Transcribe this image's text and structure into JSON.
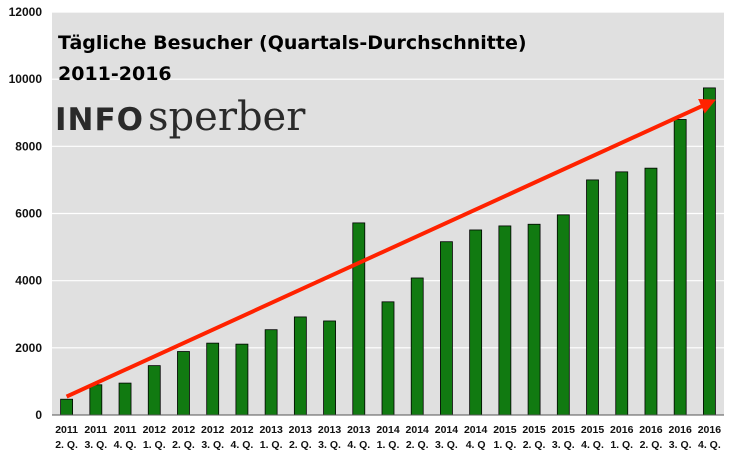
{
  "chart_data": {
    "type": "bar",
    "title": "Tägliche Besucher (Quartals-Durchschnitte)",
    "subtitle": "2011-2016",
    "logo": {
      "part1": "INFO",
      "part2": "sperber"
    },
    "categories": [
      [
        "2011",
        "2. Q."
      ],
      [
        "2011",
        "3. Q."
      ],
      [
        "2011",
        "4. Q."
      ],
      [
        "2012",
        "1. Q."
      ],
      [
        "2012",
        "2. Q."
      ],
      [
        "2012",
        "3. Q."
      ],
      [
        "2012",
        "4. Q."
      ],
      [
        "2013",
        "1. Q."
      ],
      [
        "2013",
        "2. Q."
      ],
      [
        "2013",
        "3. Q."
      ],
      [
        "2013",
        "4. Q."
      ],
      [
        "2014",
        "1. Q."
      ],
      [
        "2014",
        "2. Q."
      ],
      [
        "2014",
        "3. Q."
      ],
      [
        "2014",
        "4. Q"
      ],
      [
        "2015",
        "1. Q."
      ],
      [
        "2015",
        "2. Q."
      ],
      [
        "2015",
        "3. Q."
      ],
      [
        "2015",
        "4. Q."
      ],
      [
        "2016",
        "1. Q."
      ],
      [
        "2016",
        "2. Q."
      ],
      [
        "2016",
        "3. Q."
      ],
      [
        "2016",
        "4. Q."
      ]
    ],
    "values": [
      470,
      900,
      950,
      1470,
      1890,
      2140,
      2110,
      2540,
      2920,
      2800,
      5720,
      3370,
      4080,
      5160,
      5510,
      5630,
      5680,
      5960,
      7000,
      7240,
      7350,
      8800,
      9740
    ],
    "ylim": [
      0,
      12000
    ],
    "yticks": [
      0,
      2000,
      4000,
      6000,
      8000,
      10000,
      12000
    ],
    "grid": true,
    "colors": {
      "bar": "#117a11",
      "bar_edge": "#000000",
      "background": "#e0e0e0",
      "trend_arrow": "#ff2200"
    },
    "trend_arrow": {
      "from": [
        1,
        550
      ],
      "to": [
        23,
        9300
      ]
    }
  }
}
